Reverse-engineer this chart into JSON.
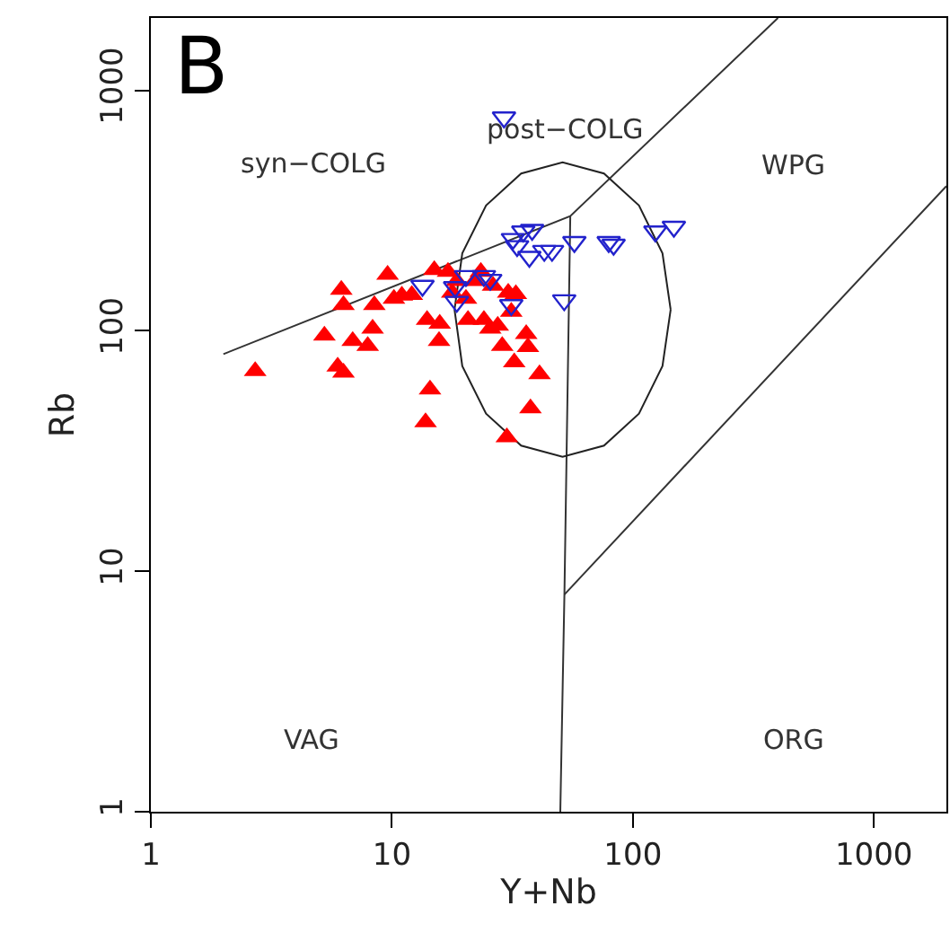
{
  "chart_data": {
    "type": "scatter",
    "xlabel": "Y+Nb",
    "ylabel": "Rb",
    "log": "xy",
    "xlim": [
      1,
      2000
    ],
    "ylim": [
      1,
      2000
    ],
    "xticks": [
      1,
      10,
      100,
      1000
    ],
    "yticks": [
      1,
      10,
      100,
      1000
    ],
    "legend": false,
    "annotations": [
      "B",
      "syn−COLG",
      "post−COLG",
      "WPG",
      "VAG",
      "ORG"
    ],
    "series": [
      {
        "type": "line",
        "color": "#333333",
        "marker": "none",
        "x": [
          2,
          55,
          400,
          null,
          55,
          52,
          50,
          null,
          52,
          2000
        ],
        "values": [
          80,
          300,
          2000,
          null,
          300,
          8,
          1,
          null,
          8,
          400
        ]
      },
      {
        "type": "line",
        "color": "#222222",
        "marker": "none",
        "x": [
          18.2,
          19.6,
          24.6,
          34.4,
          51.1,
          75.9,
          106,
          132.7,
          143.5,
          null,
          18.2,
          19.6,
          24.6,
          34.4,
          51.1,
          75.9,
          106,
          132.7,
          143.5
        ],
        "values": [
          122.5,
          210,
          332,
          451,
          502,
          451,
          332,
          210,
          122.5,
          null,
          122.5,
          71.3,
          45.2,
          33.3,
          29.9,
          33.3,
          45.2,
          71.3,
          122.5
        ]
      },
      {
        "color": "#ff0000",
        "marker": "triangle",
        "x": [
          2.71,
          5.25,
          6.17,
          6.3,
          5.96,
          6.3,
          6.88,
          7.94,
          8.32,
          8.46,
          9.6,
          10.2,
          11,
          12.1,
          14,
          14.4,
          13.8,
          15.8,
          15.7,
          15,
          17.1,
          18.6,
          17.8,
          20.3,
          20.7,
          22.1,
          24.1,
          25.6,
          26.3,
          27.5,
          28.7,
          30.4,
          31.3,
          32.7,
          32.2,
          30,
          36.1,
          36.7,
          37.6,
          41,
          23.4
        ],
        "values": [
          68,
          95.5,
          148,
          128,
          71,
          67,
          90.7,
          86.6,
          102,
          128,
          171,
          136,
          140,
          141,
          111,
          57,
          41.7,
          107,
          90.7,
          179,
          176,
          161,
          144,
          136,
          111,
          161,
          111,
          102,
          154,
          105,
          86.6,
          144,
          120,
          142,
          74,
          36.1,
          97,
          85.6,
          47.6,
          66,
          176
        ]
      },
      {
        "color": "#2222cc",
        "marker": "triangle-down",
        "x": [
          29.2,
          13.4,
          18.3,
          20.3,
          24.1,
          25.6,
          18.6,
          31.3,
          31.8,
          35.1,
          38.2,
          33.1,
          37.2,
          42.9,
          46.2,
          51.9,
          57.2,
          79.4,
          83.2,
          124,
          148
        ],
        "values": [
          772,
          154,
          152,
          169,
          169,
          163,
          132,
          128,
          241,
          259,
          263,
          225,
          203,
          215,
          215,
          134,
          234,
          234,
          228,
          259,
          271
        ]
      }
    ]
  }
}
